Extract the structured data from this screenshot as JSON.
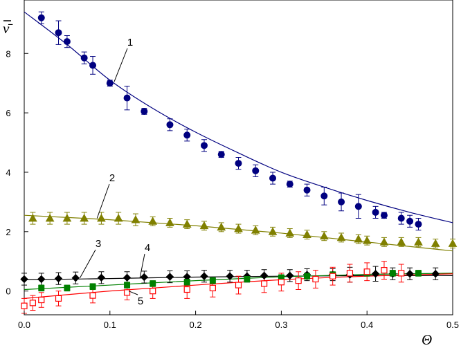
{
  "chart_data": {
    "type": "scatter",
    "title": "",
    "xlabel": "Θ",
    "ylabel": "ν̄",
    "xlim": [
      0,
      0.5
    ],
    "ylim": [
      -0.8,
      9.8
    ],
    "xticks": [
      0.0,
      0.1,
      0.2,
      0.3,
      0.4,
      0.5
    ],
    "xtick_labels": [
      "0.0",
      "0.1",
      "0.2",
      "0.3",
      "0.4",
      "0.5"
    ],
    "yticks": [
      0,
      2,
      4,
      6,
      8
    ],
    "ytick_labels": [
      "0",
      "2",
      "4",
      "6",
      "8"
    ],
    "grid": false,
    "legend": "none",
    "series": [
      {
        "label": "1",
        "color": "#000080",
        "marker": "circle",
        "x": [
          0.02,
          0.04,
          0.05,
          0.07,
          0.08,
          0.1,
          0.12,
          0.14,
          0.17,
          0.19,
          0.21,
          0.23,
          0.25,
          0.27,
          0.29,
          0.31,
          0.33,
          0.35,
          0.37,
          0.39,
          0.41,
          0.42,
          0.44,
          0.45,
          0.46
        ],
        "y": [
          9.2,
          8.7,
          8.4,
          7.85,
          7.6,
          7.0,
          6.5,
          6.05,
          5.6,
          5.25,
          4.9,
          4.6,
          4.3,
          4.05,
          3.8,
          3.6,
          3.4,
          3.2,
          3.0,
          2.85,
          2.65,
          2.55,
          2.45,
          2.35,
          2.25
        ],
        "err": [
          0.2,
          0.4,
          0.2,
          0.2,
          0.3,
          0.1,
          0.4,
          0.1,
          0.2,
          0.2,
          0.2,
          0.1,
          0.2,
          0.2,
          0.2,
          0.1,
          0.2,
          0.3,
          0.3,
          0.4,
          0.2,
          0.1,
          0.2,
          0.2,
          0.2
        ],
        "fit_x": [
          0.0,
          0.05,
          0.1,
          0.15,
          0.2,
          0.25,
          0.3,
          0.35,
          0.4,
          0.45,
          0.5
        ],
        "fit_y": [
          9.4,
          8.3,
          7.1,
          6.15,
          5.35,
          4.65,
          4.0,
          3.5,
          3.05,
          2.65,
          2.3
        ]
      },
      {
        "label": "2",
        "color": "#808000",
        "marker": "triangle",
        "x": [
          0.01,
          0.03,
          0.05,
          0.07,
          0.09,
          0.11,
          0.13,
          0.15,
          0.17,
          0.19,
          0.21,
          0.23,
          0.25,
          0.27,
          0.29,
          0.31,
          0.33,
          0.35,
          0.37,
          0.39,
          0.4,
          0.42,
          0.44,
          0.46,
          0.48,
          0.5
        ],
        "y": [
          2.45,
          2.45,
          2.45,
          2.45,
          2.45,
          2.45,
          2.4,
          2.35,
          2.3,
          2.25,
          2.2,
          2.15,
          2.1,
          2.05,
          2.0,
          1.95,
          1.9,
          1.85,
          1.8,
          1.75,
          1.7,
          1.65,
          1.65,
          1.65,
          1.6,
          1.6
        ],
        "err": [
          0.2,
          0.2,
          0.2,
          0.2,
          0.2,
          0.2,
          0.2,
          0.15,
          0.15,
          0.15,
          0.15,
          0.15,
          0.15,
          0.15,
          0.15,
          0.15,
          0.15,
          0.15,
          0.15,
          0.15,
          0.15,
          0.15,
          0.15,
          0.15,
          0.15,
          0.15
        ],
        "fit_x": [
          0.0,
          0.1,
          0.2,
          0.3,
          0.4,
          0.5
        ],
        "fit_y": [
          2.55,
          2.4,
          2.2,
          1.95,
          1.65,
          1.35
        ]
      },
      {
        "label": "3",
        "color": "#000000",
        "marker": "diamond",
        "x": [
          0.0,
          0.02,
          0.04,
          0.06,
          0.09,
          0.12,
          0.14,
          0.17,
          0.19,
          0.21,
          0.24,
          0.26,
          0.28,
          0.31,
          0.33,
          0.36,
          0.38,
          0.41,
          0.43,
          0.45,
          0.48
        ],
        "y": [
          0.4,
          0.4,
          0.42,
          0.44,
          0.45,
          0.45,
          0.47,
          0.48,
          0.48,
          0.5,
          0.5,
          0.5,
          0.52,
          0.52,
          0.55,
          0.55,
          0.55,
          0.58,
          0.58,
          0.58,
          0.58
        ],
        "err": [
          0.2,
          0.2,
          0.2,
          0.2,
          0.2,
          0.2,
          0.2,
          0.2,
          0.2,
          0.2,
          0.2,
          0.2,
          0.2,
          0.2,
          0.2,
          0.2,
          0.25,
          0.25,
          0.2,
          0.2,
          0.2
        ],
        "fit_x": [
          0.0,
          0.1,
          0.2,
          0.3,
          0.4,
          0.5
        ],
        "fit_y": [
          0.38,
          0.42,
          0.47,
          0.5,
          0.52,
          0.52
        ]
      },
      {
        "label": "4",
        "color": "#008000",
        "marker": "square",
        "x": [
          0.02,
          0.05,
          0.08,
          0.12,
          0.15,
          0.19,
          0.22,
          0.26,
          0.3,
          0.33,
          0.36,
          0.4,
          0.43,
          0.46
        ],
        "y": [
          0.1,
          0.1,
          0.15,
          0.2,
          0.25,
          0.3,
          0.35,
          0.4,
          0.45,
          0.5,
          0.55,
          0.6,
          0.6,
          0.6
        ],
        "err": [
          0.1,
          0.1,
          0.1,
          0.1,
          0.1,
          0.1,
          0.1,
          0.1,
          0.1,
          0.1,
          0.1,
          0.1,
          0.1,
          0.1
        ],
        "fit_x": [
          0.0,
          0.1,
          0.2,
          0.3,
          0.4,
          0.5
        ],
        "fit_y": [
          0.05,
          0.2,
          0.35,
          0.48,
          0.56,
          0.6
        ]
      },
      {
        "label": "5",
        "color": "#ff0000",
        "marker": "open-square",
        "x": [
          0.0,
          0.01,
          0.02,
          0.04,
          0.08,
          0.12,
          0.15,
          0.19,
          0.22,
          0.25,
          0.28,
          0.3,
          0.32,
          0.34,
          0.36,
          0.38,
          0.4,
          0.42,
          0.44
        ],
        "y": [
          -0.5,
          -0.4,
          -0.3,
          -0.25,
          -0.15,
          -0.05,
          0.0,
          0.05,
          0.1,
          0.2,
          0.25,
          0.3,
          0.35,
          0.4,
          0.5,
          0.6,
          0.65,
          0.7,
          0.6
        ],
        "err": [
          0.25,
          0.25,
          0.25,
          0.25,
          0.25,
          0.25,
          0.25,
          0.3,
          0.3,
          0.3,
          0.3,
          0.3,
          0.3,
          0.3,
          0.3,
          0.3,
          0.3,
          0.3,
          0.3
        ],
        "fit_x": [
          0.0,
          0.1,
          0.2,
          0.3,
          0.4,
          0.5
        ],
        "fit_y": [
          -0.25,
          0.0,
          0.2,
          0.38,
          0.5,
          0.58
        ]
      }
    ]
  }
}
